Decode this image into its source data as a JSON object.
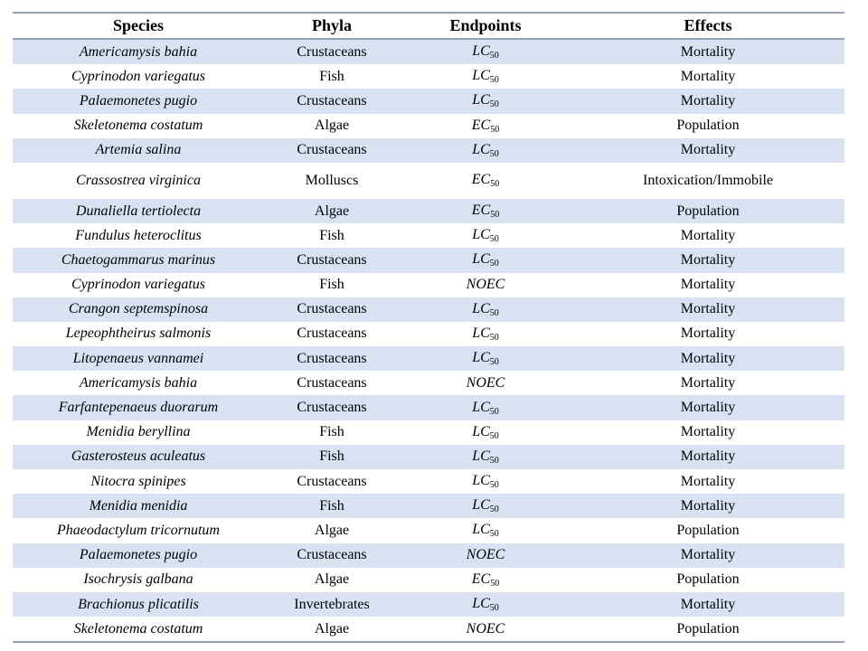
{
  "table": {
    "headers": [
      "Species",
      "Phyla",
      "Endpoints",
      "Effects"
    ],
    "rows": [
      {
        "species": "Americamysis bahia",
        "phyla": "Crustaceans",
        "endpoint": "LC",
        "sub": "50",
        "effect": "Mortality"
      },
      {
        "species": "Cyprinodon variegatus",
        "phyla": "Fish",
        "endpoint": "LC",
        "sub": "50",
        "effect": "Mortality"
      },
      {
        "species": "Palaemonetes pugio",
        "phyla": "Crustaceans",
        "endpoint": "LC",
        "sub": "50",
        "effect": "Mortality"
      },
      {
        "species": "Skeletonema costatum",
        "phyla": "Algae",
        "endpoint": "EC",
        "sub": "50",
        "effect": "Population"
      },
      {
        "species": "Artemia salina",
        "phyla": "Crustaceans",
        "endpoint": "LC",
        "sub": "50",
        "effect": "Mortality"
      },
      {
        "species": "Crassostrea virginica",
        "phyla": "Molluscs",
        "endpoint": "EC",
        "sub": "50",
        "effect": "Intoxication/Immobile",
        "tall": true
      },
      {
        "species": "Dunaliella tertiolecta",
        "phyla": "Algae",
        "endpoint": "EC",
        "sub": "50",
        "effect": "Population"
      },
      {
        "species": "Fundulus heteroclitus",
        "phyla": "Fish",
        "endpoint": "LC",
        "sub": "50",
        "effect": "Mortality"
      },
      {
        "species": "Chaetogammarus marinus",
        "phyla": "Crustaceans",
        "endpoint": "LC",
        "sub": "50",
        "effect": "Mortality"
      },
      {
        "species": "Cyprinodon variegatus",
        "phyla": "Fish",
        "endpoint": "NOEC",
        "sub": "",
        "effect": "Mortality"
      },
      {
        "species": "Crangon septemspinosa",
        "phyla": "Crustaceans",
        "endpoint": "LC",
        "sub": "50",
        "effect": "Mortality"
      },
      {
        "species": "Lepeophtheirus salmonis",
        "phyla": "Crustaceans",
        "endpoint": "LC",
        "sub": "50",
        "effect": "Mortality"
      },
      {
        "species": "Litopenaeus vannamei",
        "phyla": "Crustaceans",
        "endpoint": "LC",
        "sub": "50",
        "effect": "Mortality"
      },
      {
        "species": "Americamysis bahia",
        "phyla": "Crustaceans",
        "endpoint": "NOEC",
        "sub": "",
        "effect": "Mortality"
      },
      {
        "species": "Farfantepenaeus duorarum",
        "phyla": "Crustaceans",
        "endpoint": "LC",
        "sub": "50",
        "effect": "Mortality"
      },
      {
        "species": "Menidia beryllina",
        "phyla": "Fish",
        "endpoint": "LC",
        "sub": "50",
        "effect": "Mortality"
      },
      {
        "species": "Gasterosteus aculeatus",
        "phyla": "Fish",
        "endpoint": "LC",
        "sub": "50",
        "effect": "Mortality"
      },
      {
        "species": "Nitocra spinipes",
        "phyla": "Crustaceans",
        "endpoint": "LC",
        "sub": "50",
        "effect": "Mortality"
      },
      {
        "species": "Menidia menidia",
        "phyla": "Fish",
        "endpoint": "LC",
        "sub": "50",
        "effect": "Mortality"
      },
      {
        "species": "Phaeodactylum tricornutum",
        "phyla": "Algae",
        "endpoint": "LC",
        "sub": "50",
        "effect": "Population"
      },
      {
        "species": "Palaemonetes pugio",
        "phyla": "Crustaceans",
        "endpoint": "NOEC",
        "sub": "",
        "effect": "Mortality"
      },
      {
        "species": "Isochrysis galbana",
        "phyla": "Algae",
        "endpoint": "EC",
        "sub": "50",
        "effect": "Population"
      },
      {
        "species": "Brachionus plicatilis",
        "phyla": "Invertebrates",
        "endpoint": "LC",
        "sub": "50",
        "effect": "Mortality"
      },
      {
        "species": "Skeletonema costatum",
        "phyla": "Algae",
        "endpoint": "NOEC",
        "sub": "",
        "effect": "Population"
      }
    ]
  },
  "colors": {
    "stripe": "#d9e2f3",
    "rule": "#8ea3b8"
  }
}
